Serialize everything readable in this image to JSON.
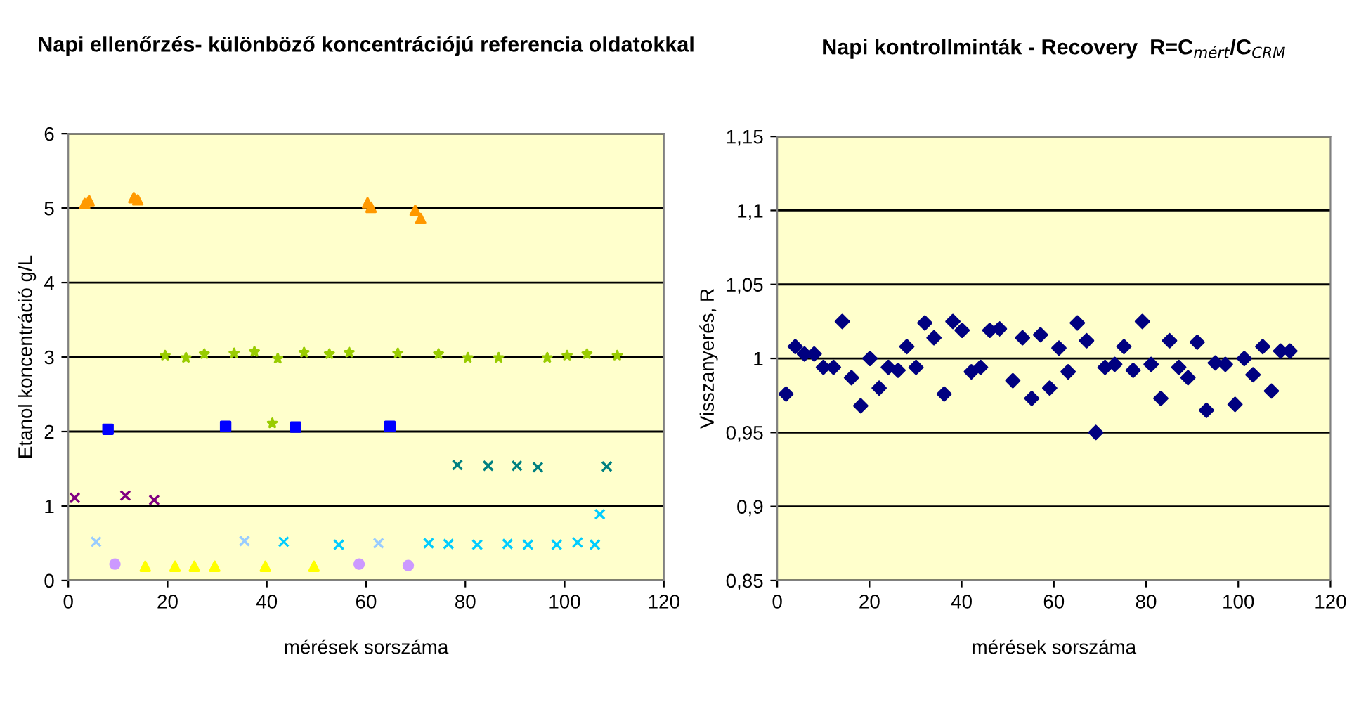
{
  "chart_data": [
    {
      "type": "scatter",
      "title": "Napi ellenőrzés- különböző koncentrációjú referencia oldatokkal",
      "xlabel": "mérések sorszáma",
      "ylabel": "Etanol koncentráció g/L",
      "xlim": [
        0,
        120
      ],
      "xticks": [
        0,
        20,
        40,
        60,
        80,
        100,
        120
      ],
      "ylim": [
        0,
        6
      ],
      "yticks": [
        0,
        1,
        2,
        3,
        4,
        5,
        6
      ],
      "grid": "y",
      "legend": false,
      "series": [
        {
          "color": "#ff9900",
          "marker": "triangle",
          "x": [
            3.3,
            4.2,
            13.2,
            14,
            60.3,
            61,
            69.9,
            71
          ],
          "values": [
            5.06,
            5.1,
            5.14,
            5.11,
            5.07,
            5.01,
            4.97,
            4.86
          ]
        },
        {
          "color": "#99cc00",
          "marker": "star",
          "x": [
            19.5,
            23.7,
            27.4,
            33.4,
            37.5,
            41.1,
            42.2,
            47.5,
            52.6,
            56.6,
            66.4,
            74.6,
            80.5,
            86.7,
            96.5,
            100.5,
            104.5,
            110.6
          ],
          "values": [
            3.02,
            2.99,
            3.04,
            3.05,
            3.07,
            2.11,
            2.98,
            3.06,
            3.04,
            3.06,
            3.05,
            3.04,
            2.99,
            2.99,
            2.99,
            3.02,
            3.04,
            3.02
          ]
        },
        {
          "color": "#0000ff",
          "marker": "square",
          "x": [
            8,
            31.7,
            45.8,
            64.8
          ],
          "values": [
            2.03,
            2.07,
            2.06,
            2.07
          ]
        },
        {
          "color": "#800080",
          "marker": "cross",
          "x": [
            1.3,
            11.5,
            17.3
          ],
          "values": [
            1.11,
            1.14,
            1.08
          ]
        },
        {
          "color": "#008080",
          "marker": "cross",
          "x": [
            78.4,
            84.6,
            90.4,
            94.6,
            108.5
          ],
          "values": [
            1.55,
            1.54,
            1.54,
            1.52,
            1.53
          ]
        },
        {
          "color": "#99ccff",
          "marker": "cross",
          "x": [
            5.6,
            35.5,
            62.5
          ],
          "values": [
            0.52,
            0.53,
            0.5
          ]
        },
        {
          "color": "#00ccff",
          "marker": "cross",
          "x": [
            43.4,
            54.5,
            72.6,
            76.6,
            82.4,
            88.5,
            92.6,
            98.4,
            102.6,
            106.1,
            107.1
          ],
          "values": [
            0.52,
            0.48,
            0.5,
            0.49,
            0.48,
            0.49,
            0.48,
            0.48,
            0.51,
            0.48,
            0.89
          ]
        },
        {
          "color": "#cc99ff",
          "marker": "circle",
          "x": [
            9.4,
            58.6,
            68.5
          ],
          "values": [
            0.22,
            0.22,
            0.2
          ]
        },
        {
          "color": "#ffff00",
          "marker": "triangle",
          "x": [
            15.5,
            21.5,
            25.4,
            29.5,
            39.7,
            49.5
          ],
          "values": [
            0.19,
            0.19,
            0.19,
            0.19,
            0.19,
            0.19
          ]
        }
      ]
    },
    {
      "type": "scatter",
      "title": "Napi kontrollminták - Recovery  R=C$_{mért}$/C$_{CRM}$",
      "xlabel": "mérések sorszáma",
      "ylabel": "Visszanyerés, R",
      "xlim": [
        0,
        120
      ],
      "xticks": [
        0,
        20,
        40,
        60,
        80,
        100,
        120
      ],
      "ylim": [
        0.85,
        1.15
      ],
      "yticks": [
        {
          "value": 0.85,
          "label": "0,85"
        },
        {
          "value": 0.9,
          "label": "0,9"
        },
        {
          "value": 0.95,
          "label": "0,95"
        },
        1,
        {
          "value": 1.05,
          "label": "1,05"
        },
        {
          "value": 1.1,
          "label": "1,1"
        },
        {
          "value": 1.15,
          "label": "1,15"
        }
      ],
      "grid": "y",
      "legend": false,
      "marker": "diamond",
      "series": [
        {
          "color": "#000080",
          "x": [
            1.9,
            3.9,
            5.9,
            8,
            10,
            12.2,
            14.1,
            16.1,
            18.1,
            20.1,
            22.1,
            24.1,
            26.2,
            28.1,
            30.1,
            32,
            34,
            36.2,
            38.1,
            40.1,
            42.1,
            44.1,
            46.1,
            48.2,
            51.1,
            53.2,
            55.2,
            57.1,
            59.1,
            61.1,
            63.1,
            65.1,
            67.1,
            69.1,
            71.1,
            73.2,
            75.2,
            77.2,
            79.2,
            81.1,
            83.2,
            85.1,
            87.1,
            89.1,
            91.1,
            93.1,
            95,
            97.2,
            99.3,
            101.3,
            103.2,
            105.3,
            107.2,
            109.2,
            111.2
          ],
          "values": [
            0.976,
            1.008,
            1.003,
            1.003,
            0.994,
            0.994,
            1.025,
            0.987,
            0.968,
            1.0,
            0.98,
            0.994,
            0.992,
            1.008,
            0.994,
            1.024,
            1.014,
            0.976,
            1.025,
            1.019,
            0.991,
            0.994,
            1.019,
            1.02,
            0.985,
            1.014,
            0.973,
            1.016,
            0.98,
            1.007,
            0.991,
            1.024,
            1.012,
            0.95,
            0.994,
            0.996,
            1.008,
            0.992,
            1.025,
            0.996,
            0.973,
            1.012,
            0.994,
            0.987,
            1.011,
            0.965,
            0.997,
            0.996,
            0.969,
            1.0,
            0.989,
            1.008,
            0.978,
            1.005,
            1.005
          ]
        }
      ]
    }
  ]
}
